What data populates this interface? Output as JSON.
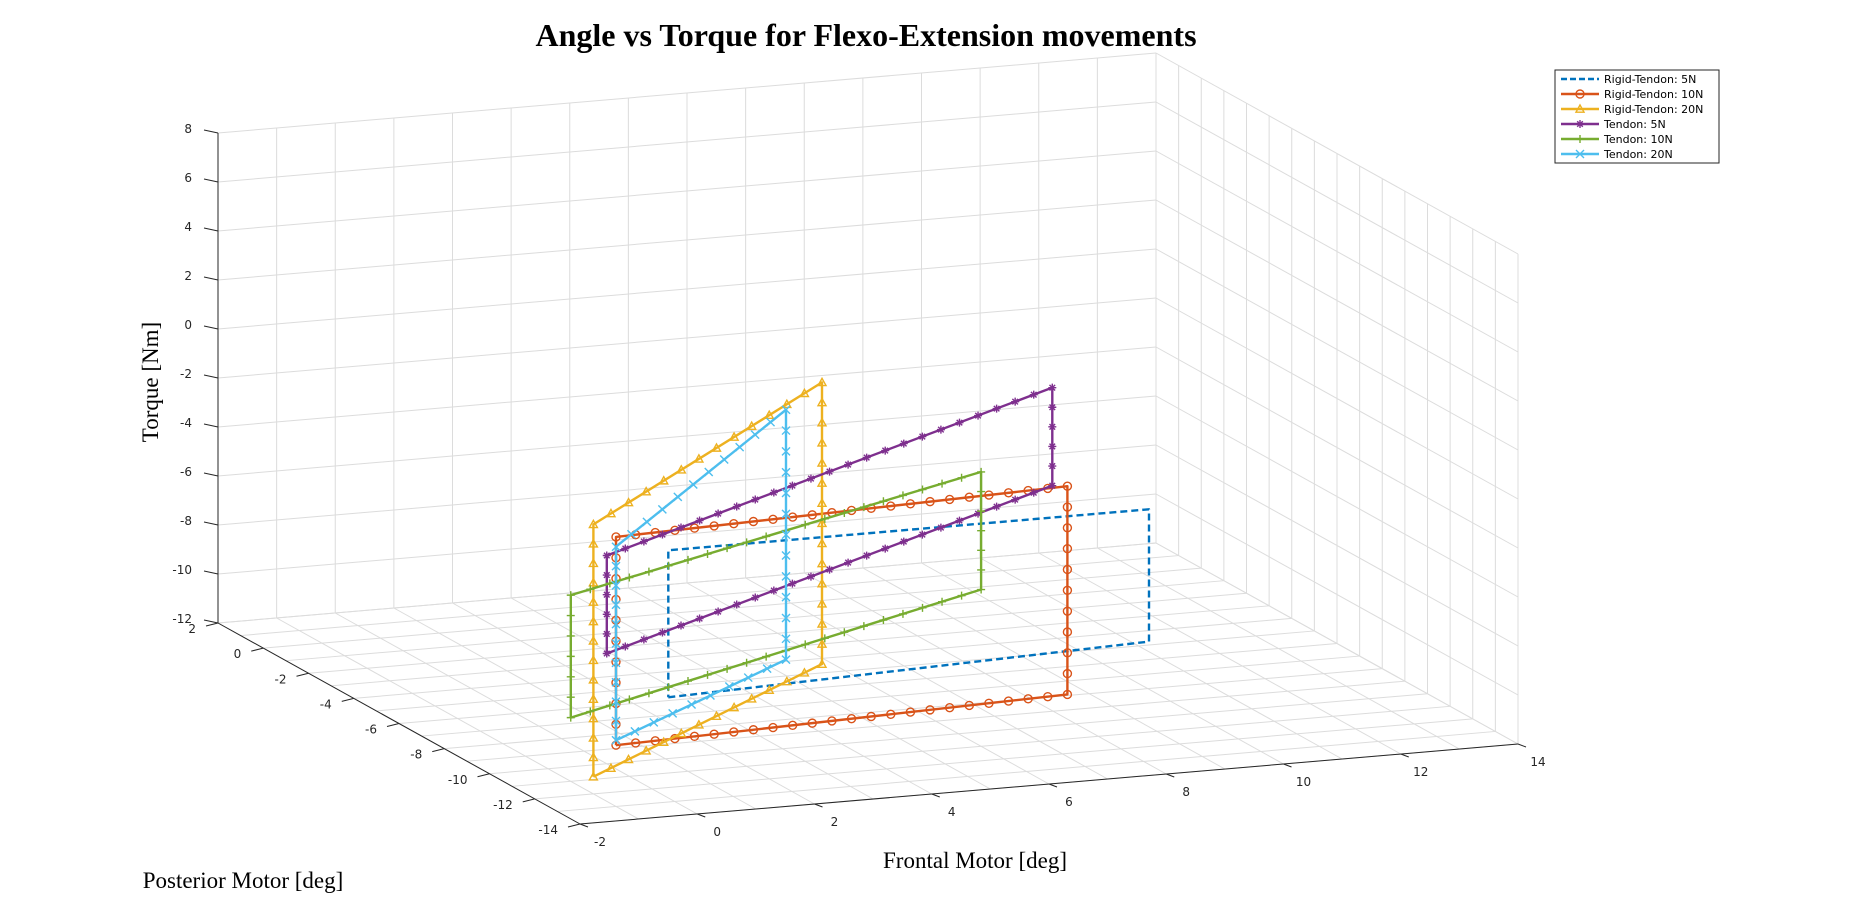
{
  "chart_data": {
    "type": "line",
    "projection": "3d",
    "title": "Angle vs Torque for Flexo-Extension movements",
    "xlabel": "Frontal Motor [deg]",
    "ylabel": "Posterior Motor [deg]",
    "zlabel": "Torque [Nm]",
    "xlim": [
      -2,
      14
    ],
    "ylim": [
      -14,
      2
    ],
    "zlim": [
      -12,
      8
    ],
    "xticks": [
      "-2",
      "0",
      "2",
      "4",
      "6",
      "8",
      "10",
      "12",
      "14"
    ],
    "yticks": [
      "-14",
      "-12",
      "-10",
      "-8",
      "-6",
      "-4",
      "-2",
      "0",
      "2"
    ],
    "zticks": [
      "-12",
      "-10",
      "-8",
      "-6",
      "-4",
      "-2",
      "0",
      "2",
      "4",
      "6",
      "8"
    ],
    "grid": true,
    "legend_position": "top-right",
    "series": [
      {
        "name": "Rigid-Tendon: 5N",
        "color": "#0072BD",
        "style": "dashed",
        "marker": "none",
        "points": [
          [
            0.2,
            -12.2,
            -8.2
          ],
          [
            8.4,
            -12.2,
            -7.6
          ],
          [
            8.4,
            -12.2,
            -2.2
          ],
          [
            0.2,
            -12.2,
            -2.2
          ],
          [
            0.2,
            -12.2,
            -8.2
          ]
        ]
      },
      {
        "name": "Rigid-Tendon: 10N",
        "color": "#D95319",
        "style": "solid",
        "marker": "circle",
        "points": [
          [
            -1,
            -13,
            -9.5
          ],
          [
            6.7,
            -13,
            -9.0
          ],
          [
            6.7,
            -13,
            -0.5
          ],
          [
            -1,
            -13,
            -1.0
          ],
          [
            -1,
            -13,
            -9.5
          ]
        ]
      },
      {
        "name": "Rigid-Tendon: 20N",
        "color": "#EDB120",
        "style": "solid",
        "marker": "triangle",
        "points": [
          [
            -1,
            -12,
            -11.3
          ],
          [
            2.9,
            -12,
            -7.5
          ],
          [
            2.9,
            -12,
            4.0
          ],
          [
            -1,
            -12,
            -1.0
          ],
          [
            -1,
            -12,
            -11.3
          ]
        ]
      },
      {
        "name": "Tendon: 5N",
        "color": "#7E2F8E",
        "style": "solid",
        "marker": "asterisk",
        "points": [
          [
            0.0,
            -10,
            -7.5
          ],
          [
            7.6,
            -10,
            -2.2
          ],
          [
            7.6,
            -10,
            1.8
          ],
          [
            0.0,
            -10,
            -3.5
          ],
          [
            0.0,
            -10,
            -7.5
          ]
        ]
      },
      {
        "name": "Tendon: 10N",
        "color": "#77AC30",
        "style": "solid",
        "marker": "plus",
        "points": [
          [
            -1,
            -11,
            -9.4
          ],
          [
            6.0,
            -11,
            -5.6
          ],
          [
            6.0,
            -11,
            -0.8
          ],
          [
            -1,
            -11,
            -4.4
          ],
          [
            -1,
            -11,
            -9.4
          ]
        ]
      },
      {
        "name": "Tendon: 20N",
        "color": "#4DBEEE",
        "style": "solid",
        "marker": "x",
        "points": [
          [
            -1,
            -13,
            -9.3
          ],
          [
            1.9,
            -13,
            -6.6
          ],
          [
            1.9,
            -13,
            3.6
          ],
          [
            -1,
            -13,
            -1.4
          ],
          [
            -1,
            -13,
            -9.3
          ]
        ]
      }
    ]
  }
}
